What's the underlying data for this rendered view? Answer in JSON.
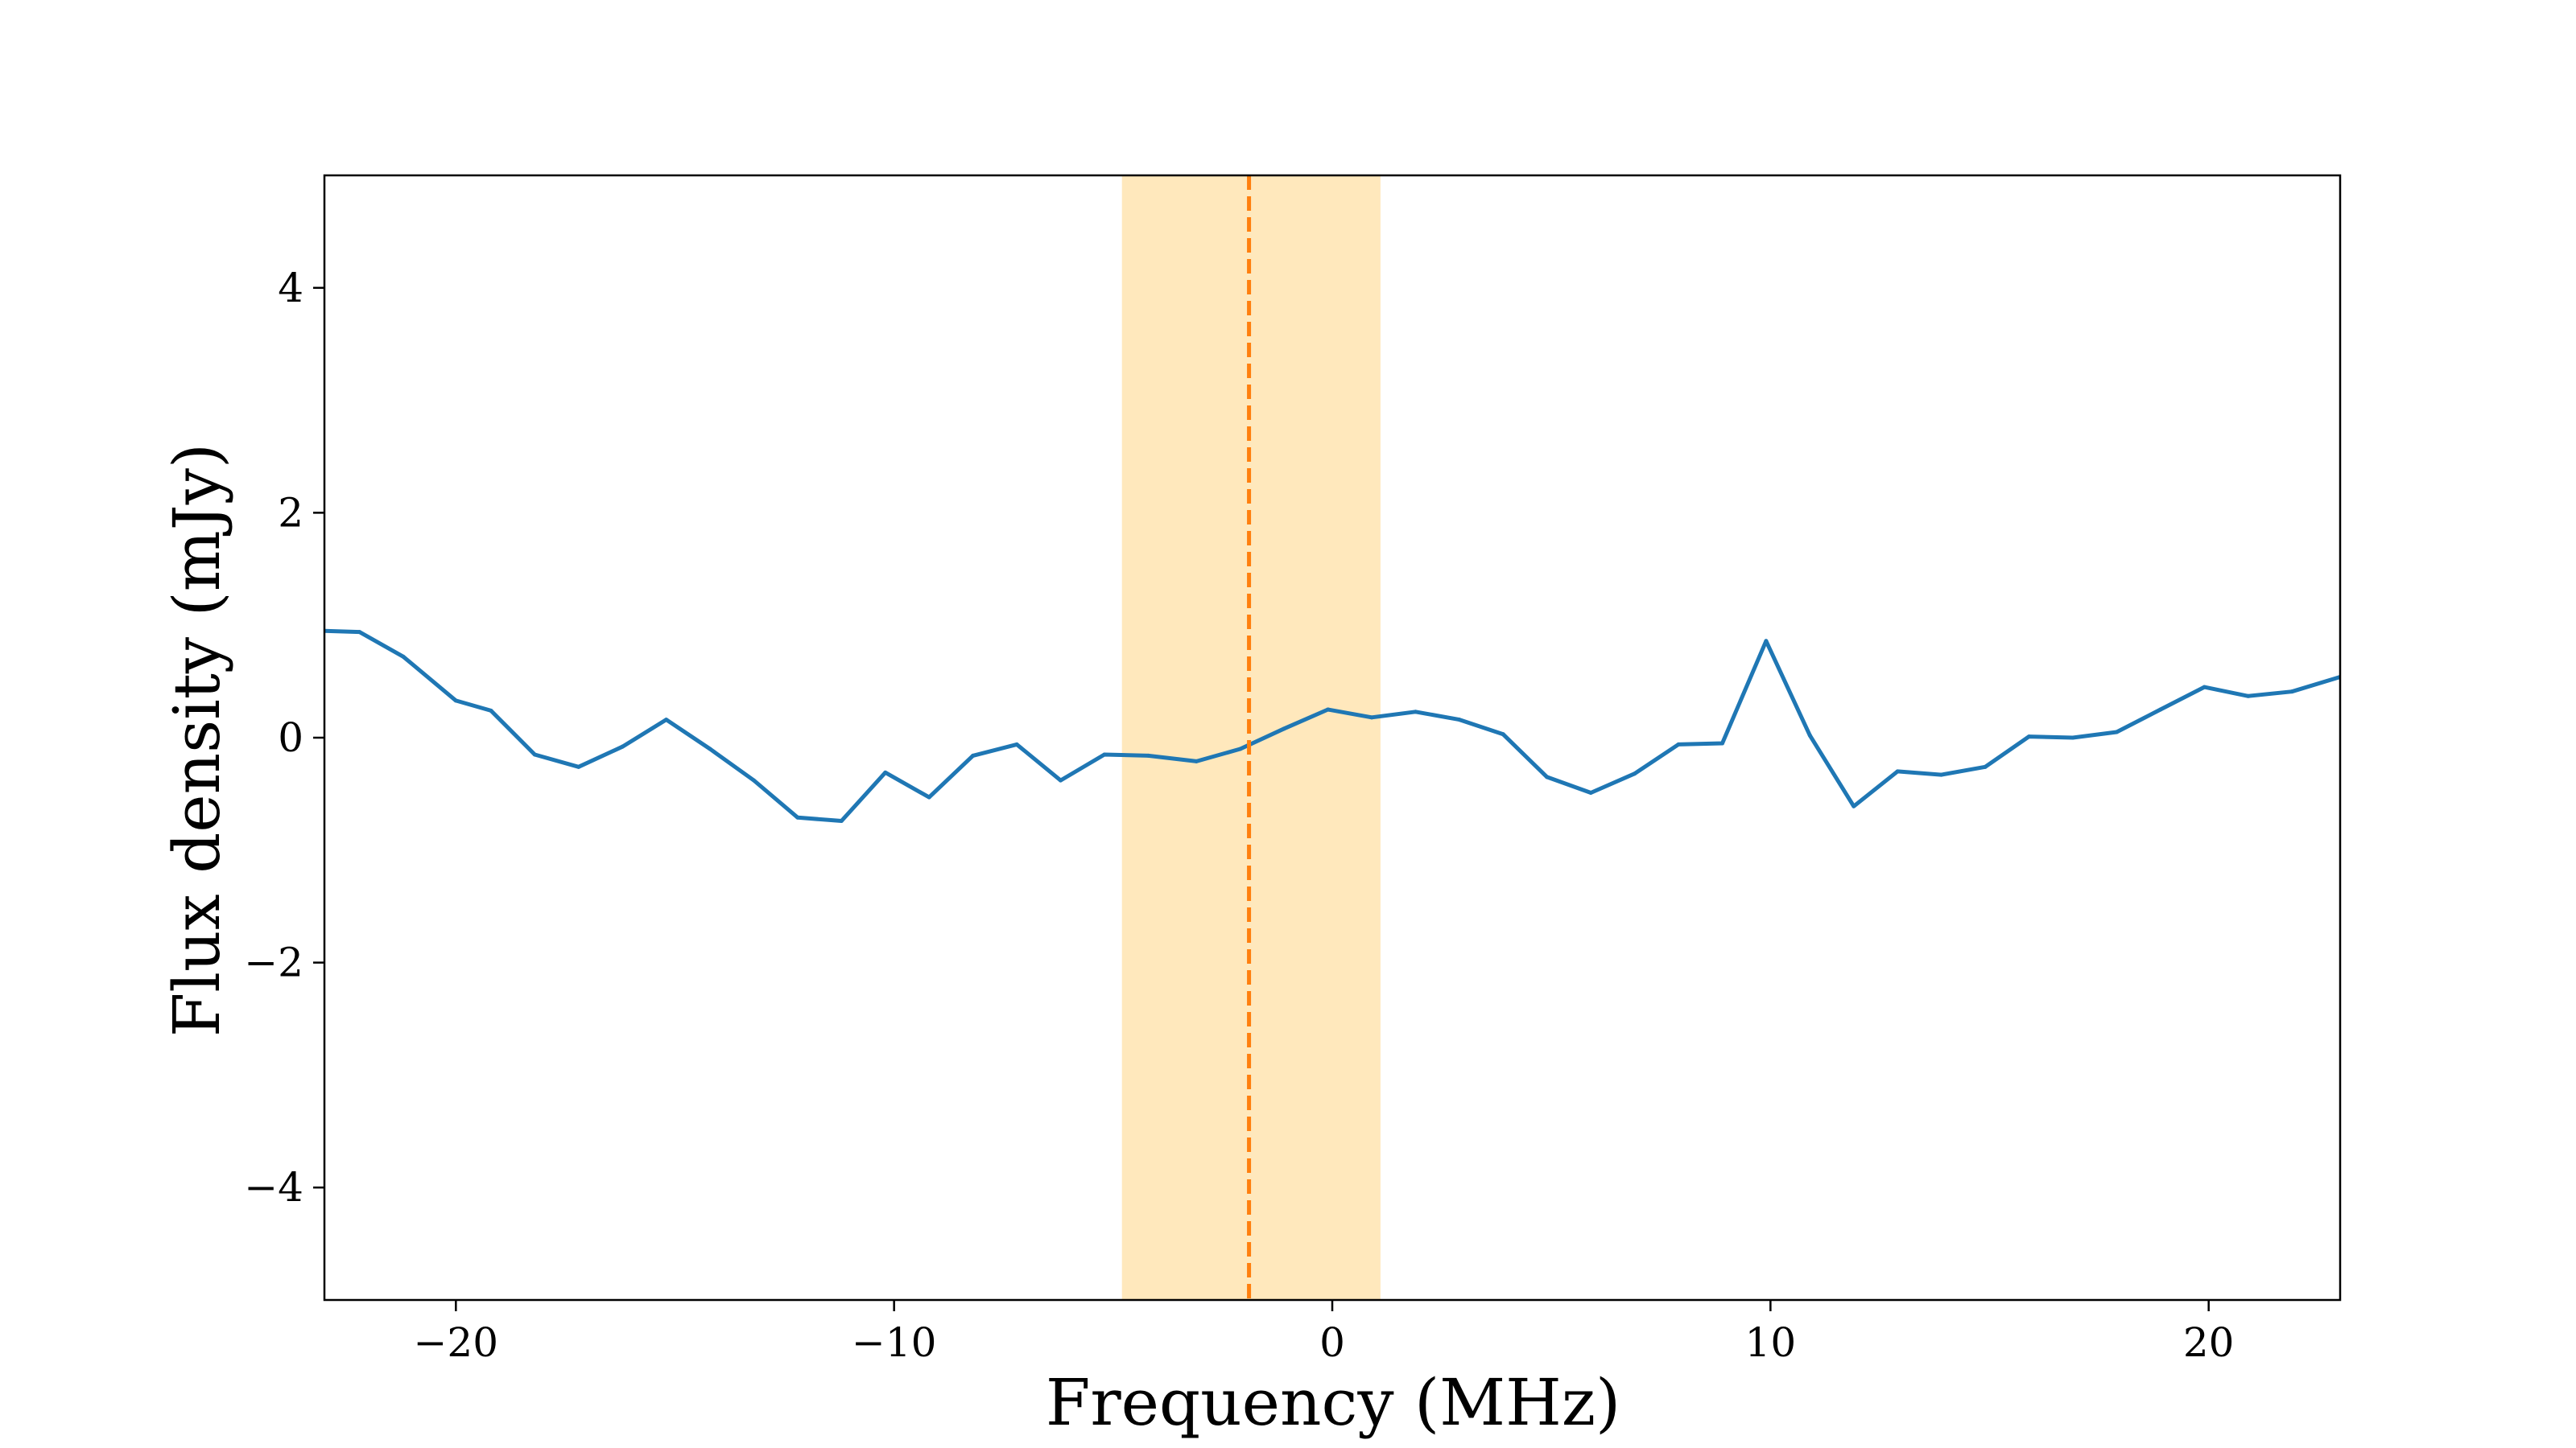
{
  "chart_data": {
    "type": "line",
    "title": "",
    "xlabel": "Frequency (MHz)",
    "ylabel": "Flux density (mJy)",
    "xlim": [
      -23,
      23
    ],
    "ylim": [
      -5,
      5
    ],
    "xticks": [
      {
        "value": -20,
        "label": "−20"
      },
      {
        "value": -10,
        "label": "−10"
      },
      {
        "value": 0,
        "label": "0"
      },
      {
        "value": 10,
        "label": "10"
      },
      {
        "value": 20,
        "label": "20"
      }
    ],
    "yticks": [
      {
        "value": -4,
        "label": "−4"
      },
      {
        "value": -2,
        "label": "−2"
      },
      {
        "value": 0,
        "label": "0"
      },
      {
        "value": 2,
        "label": "2"
      },
      {
        "value": 4,
        "label": "4"
      }
    ],
    "grid": false,
    "band": {
      "x0": -4.8,
      "x1": 1.1,
      "color": "#ffe4b0"
    },
    "vline": {
      "x": -1.9,
      "color": "#ff7f0e",
      "style": "dashed"
    },
    "series": [
      {
        "name": "spectrum",
        "color": "#1f77b4",
        "x": [
          -23.0,
          -22.2,
          -21.2,
          -20.0,
          -19.2,
          -18.2,
          -17.2,
          -16.2,
          -15.2,
          -14.2,
          -13.2,
          -12.2,
          -11.2,
          -10.2,
          -9.2,
          -8.2,
          -7.2,
          -6.2,
          -5.2,
          -4.2,
          -3.1,
          -2.1,
          -1.1,
          -0.1,
          0.9,
          1.9,
          2.9,
          3.9,
          4.9,
          5.9,
          6.9,
          7.9,
          8.9,
          9.9,
          10.9,
          11.9,
          12.9,
          13.9,
          14.9,
          15.9,
          16.9,
          17.9,
          18.9,
          19.9,
          20.9,
          21.9,
          23.0
        ],
        "y": [
          0.95,
          0.94,
          0.72,
          0.33,
          0.24,
          -0.15,
          -0.26,
          -0.08,
          0.16,
          -0.1,
          -0.38,
          -0.71,
          -0.74,
          -0.31,
          -0.53,
          -0.16,
          -0.06,
          -0.38,
          -0.15,
          -0.16,
          -0.21,
          -0.1,
          0.08,
          0.25,
          0.18,
          0.23,
          0.16,
          0.03,
          -0.35,
          -0.49,
          -0.32,
          -0.06,
          -0.05,
          0.86,
          0.02,
          -0.61,
          -0.3,
          -0.33,
          -0.26,
          0.01,
          0.0,
          0.05,
          0.25,
          0.45,
          0.37,
          0.41,
          0.54
        ]
      }
    ]
  }
}
